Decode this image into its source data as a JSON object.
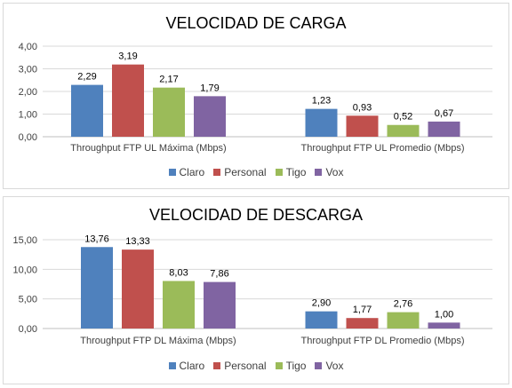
{
  "chart_data": [
    {
      "type": "bar",
      "title": "VELOCIDAD DE CARGA",
      "categories": [
        "Throughput FTP UL Máxima (Mbps)",
        "Throughput FTP UL Promedio (Mbps)"
      ],
      "series": [
        {
          "name": "Claro",
          "color": "#4f81bd",
          "values": [
            2.29,
            1.23
          ],
          "labels": [
            "2,29",
            "1,23"
          ]
        },
        {
          "name": "Personal",
          "color": "#c0504d",
          "values": [
            3.19,
            0.93
          ],
          "labels": [
            "3,19",
            "0,93"
          ]
        },
        {
          "name": "Tigo",
          "color": "#9bbb59",
          "values": [
            2.17,
            0.52
          ],
          "labels": [
            "2,17",
            "0,52"
          ]
        },
        {
          "name": "Vox",
          "color": "#8064a2",
          "values": [
            1.79,
            0.67
          ],
          "labels": [
            "1,79",
            "0,67"
          ]
        }
      ],
      "ylim": [
        0,
        4
      ],
      "yticks": [
        "0,00",
        "1,00",
        "2,00",
        "3,00",
        "4,00"
      ],
      "grid": true,
      "legend": "bottom"
    },
    {
      "type": "bar",
      "title": "VELOCIDAD DE DESCARGA",
      "categories": [
        "Throughput FTP DL Máxima (Mbps)",
        "Throughput FTP DL Promedio (Mbps)"
      ],
      "series": [
        {
          "name": "Claro",
          "color": "#4f81bd",
          "values": [
            13.76,
            2.9
          ],
          "labels": [
            "13,76",
            "2,90"
          ]
        },
        {
          "name": "Personal",
          "color": "#c0504d",
          "values": [
            13.33,
            1.77
          ],
          "labels": [
            "13,33",
            "1,77"
          ]
        },
        {
          "name": "Tigo",
          "color": "#9bbb59",
          "values": [
            8.03,
            2.76
          ],
          "labels": [
            "8,03",
            "2,76"
          ]
        },
        {
          "name": "Vox",
          "color": "#8064a2",
          "values": [
            7.86,
            1.0
          ],
          "labels": [
            "7,86",
            "1,00"
          ]
        }
      ],
      "ylim": [
        0,
        15
      ],
      "yticks": [
        "0,00",
        "5,00",
        "10,00",
        "15,00"
      ],
      "grid": true,
      "legend": "bottom"
    }
  ]
}
